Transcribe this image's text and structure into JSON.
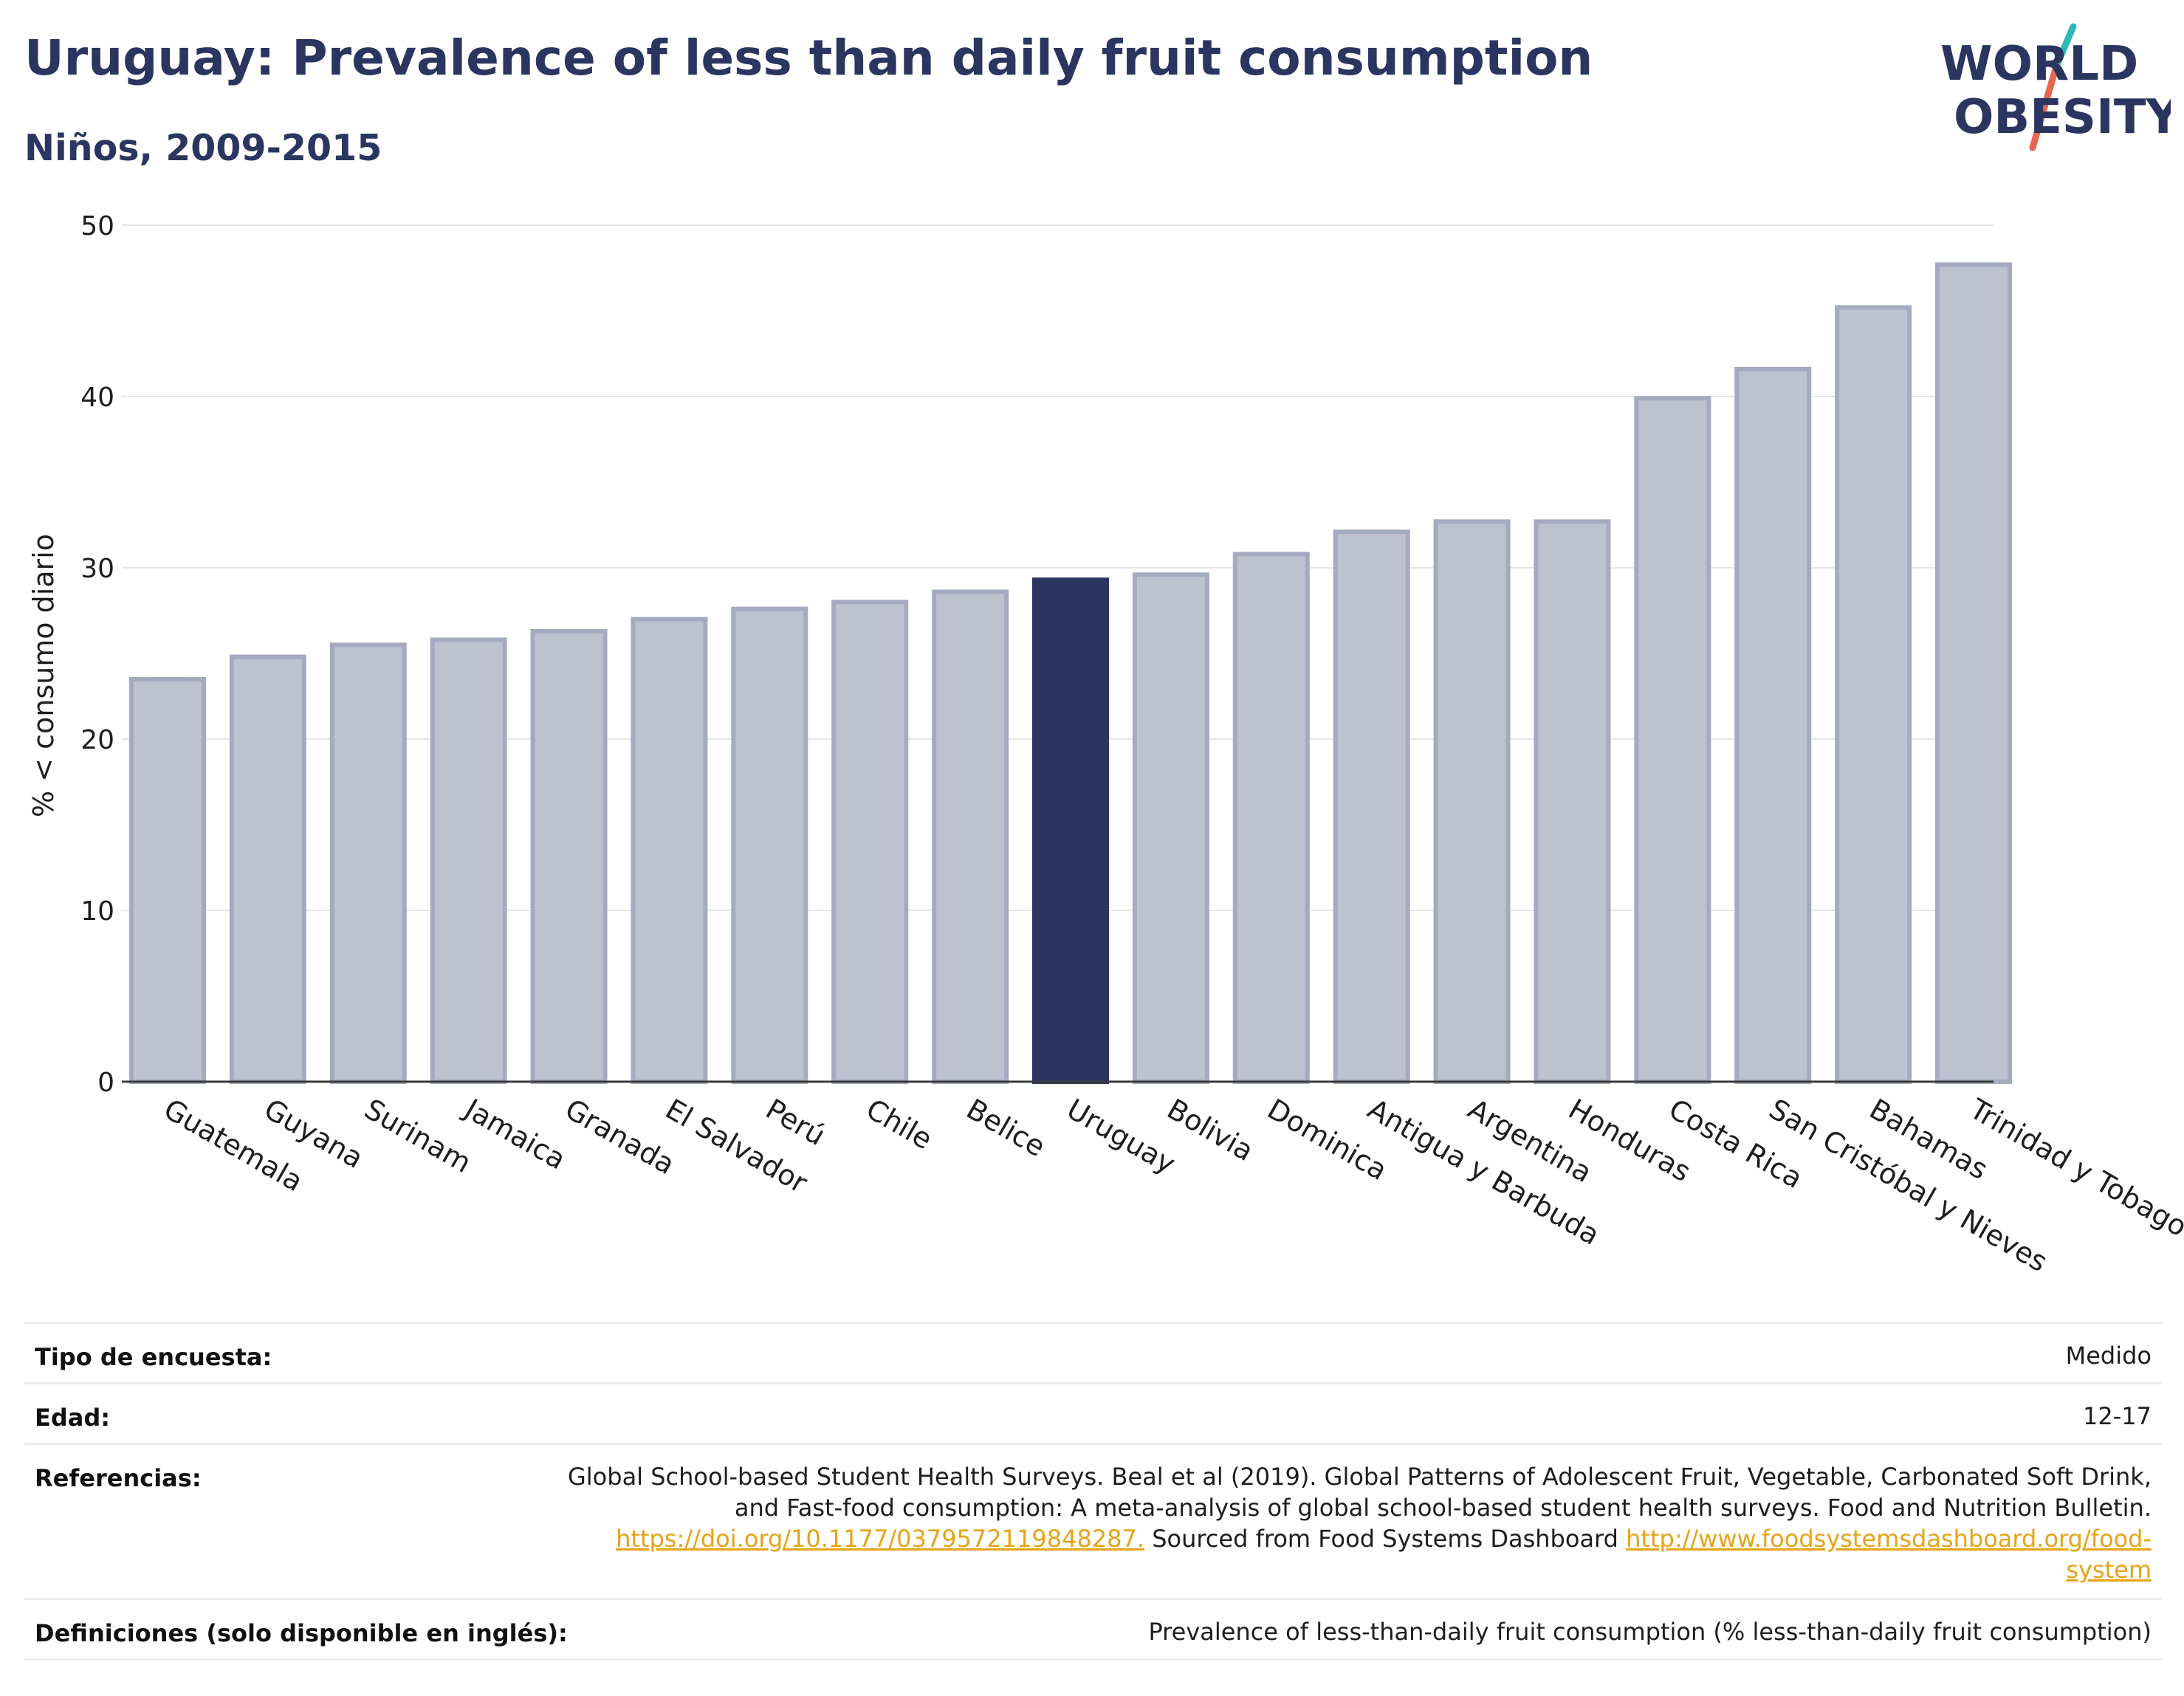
{
  "header": {
    "title": "Uruguay: Prevalence of less than daily fruit consumption",
    "subtitle": "Niños, 2009-2015"
  },
  "logo": {
    "line1": "WORLD",
    "line2": "OBESITY",
    "colors": {
      "text": "#2a3560",
      "slash_top": "#2bb9b2",
      "slash_bottom": "#e5674f"
    }
  },
  "chart_data": {
    "type": "bar",
    "ylabel": "% < consumo diario",
    "xlabel": "",
    "ylim": [
      0,
      50
    ],
    "yticks": [
      0,
      10,
      20,
      30,
      40,
      50
    ],
    "grid": true,
    "highlight": "Uruguay",
    "colors": {
      "bar": "#bec2cf",
      "bar_edge": "#a4aac0",
      "highlight": "#2a3560"
    },
    "categories": [
      "Guatemala",
      "Guyana",
      "Surinam",
      "Jamaica",
      "Granada",
      "El Salvador",
      "Perú",
      "Chile",
      "Belice",
      "Uruguay",
      "Bolivia",
      "Dominica",
      "Antigua y Barbuda",
      "Argentina",
      "Honduras",
      "Costa Rica",
      "San Cristóbal y Nieves",
      "Bahamas",
      "Trinidad y Tobago"
    ],
    "values": [
      23.5,
      24.8,
      25.5,
      25.8,
      26.3,
      27.0,
      27.6,
      28.0,
      28.6,
      29.3,
      29.6,
      30.8,
      32.1,
      32.7,
      32.7,
      39.9,
      41.6,
      45.2,
      47.7
    ]
  },
  "info": {
    "rows": [
      {
        "label": "Tipo de encuesta:",
        "value": "Medido"
      },
      {
        "label": "Edad:",
        "value": "12-17"
      },
      {
        "label": "Referencias:",
        "value_line1": "Global School-based Student Health Surveys. Beal et al (2019). Global Patterns of Adolescent Fruit, Vegetable, Carbonated Soft Drink,",
        "value_line2": "and Fast-food consumption: A meta-analysis of global school-based student health surveys. Food and Nutrition Bulletin.",
        "link1": "https://doi.org/10.1177/0379572119848287.",
        "mid_text": " Sourced from Food Systems Dashboard ",
        "link2_part1": "http://www.foodsystemsdashboard.org/food-",
        "link2_part2": "system"
      },
      {
        "label": "Definiciones (solo disponible en inglés):",
        "value": "Prevalence of less-than-daily fruit consumption (% less-than-daily fruit consumption)"
      }
    ]
  }
}
